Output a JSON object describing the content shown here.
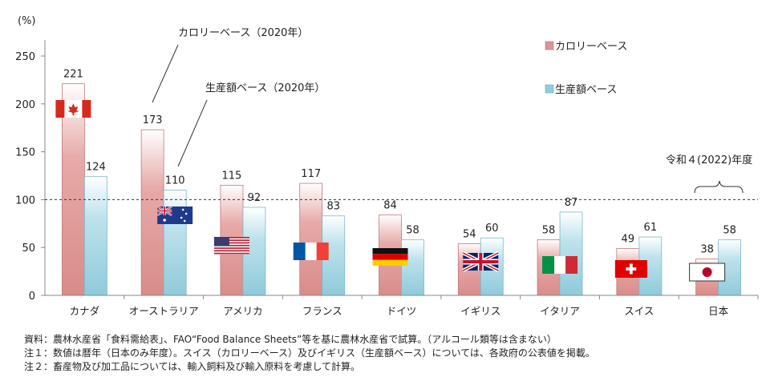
{
  "chart_data": {
    "type": "bar",
    "unit_label": "(%)",
    "categories": [
      "カナダ",
      "オーストラリア",
      "アメリカ",
      "フランス",
      "ドイツ",
      "イギリス",
      "イタリア",
      "スイス",
      "日本"
    ],
    "series": [
      {
        "name": "カロリーベース",
        "values": [
          221,
          173,
          115,
          117,
          84,
          54,
          58,
          49,
          38
        ],
        "color": "#d99694"
      },
      {
        "name": "生産額ベース",
        "values": [
          124,
          110,
          92,
          83,
          58,
          60,
          87,
          61,
          58
        ],
        "color": "#93cddd"
      }
    ],
    "ylim": [
      0,
      250
    ],
    "yticks": [
      "0",
      "50",
      "100",
      "150",
      "200",
      "250"
    ],
    "reference_line": 100,
    "grid": false,
    "legend_position": "top-right",
    "annotations": {
      "calorie_note": "カロリーベース（2020年）",
      "production_note": "生産額ベース（2020年）",
      "japan_note": "令和４(2022)年度"
    },
    "flags": [
      "canada-flag",
      "australia-flag",
      "usa-flag",
      "france-flag",
      "germany-flag",
      "uk-flag",
      "italy-flag",
      "switzerland-flag",
      "japan-flag"
    ]
  },
  "notes": [
    "資料：農林水産省「食料需給表」、FAO“Food Balance Sheets”等を基に農林水産省で試算。（アルコール類等は含まない）",
    "注１：数値は暦年（日本のみ年度）。スイス（カロリーベース）及びイギリス（生産額ベース）については、各政府の公表値を掲載。",
    "注２：畜産物及び加工品については、輸入飼料及び輸入原料を考慮して計算。"
  ]
}
